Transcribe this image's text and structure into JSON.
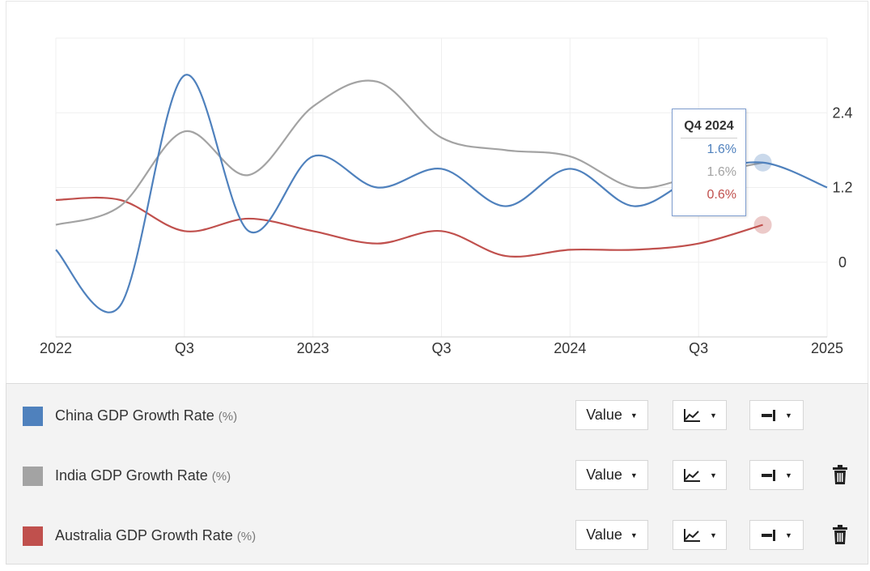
{
  "chart_data": {
    "type": "line",
    "x_ticks": [
      "2022",
      "Q3",
      "2023",
      "Q3",
      "2024",
      "Q3",
      "2025"
    ],
    "y_ticks": [
      "2.4",
      "1.2",
      "0"
    ],
    "ylim": [
      -1.2,
      3.6
    ],
    "y_axis_side": "right",
    "grid": true,
    "series": [
      {
        "name": "China GDP Growth Rate",
        "unit": "(%)",
        "color": "#4f81bd",
        "points": [
          [
            0,
            0.2
          ],
          [
            0.5,
            -0.7
          ],
          [
            1,
            3.0
          ],
          [
            1.5,
            0.5
          ],
          [
            2,
            1.7
          ],
          [
            2.5,
            1.2
          ],
          [
            3,
            1.5
          ],
          [
            3.5,
            0.9
          ],
          [
            4,
            1.5
          ],
          [
            4.5,
            0.9
          ],
          [
            5,
            1.4
          ],
          [
            5.5,
            1.6
          ],
          [
            6,
            1.2
          ]
        ]
      },
      {
        "name": "India GDP Growth Rate",
        "unit": "(%)",
        "color": "#a3a3a3",
        "points": [
          [
            0,
            0.6
          ],
          [
            0.5,
            0.9
          ],
          [
            1,
            2.1
          ],
          [
            1.5,
            1.4
          ],
          [
            2,
            2.5
          ],
          [
            2.5,
            2.9
          ],
          [
            3,
            2.0
          ],
          [
            3.5,
            1.8
          ],
          [
            4,
            1.7
          ],
          [
            4.5,
            1.2
          ],
          [
            5,
            1.4
          ],
          [
            5.5,
            1.6
          ]
        ]
      },
      {
        "name": "Australia GDP Growth Rate",
        "unit": "(%)",
        "color": "#c0504d",
        "points": [
          [
            0,
            1.0
          ],
          [
            0.5,
            1.0
          ],
          [
            1,
            0.5
          ],
          [
            1.5,
            0.7
          ],
          [
            2,
            0.5
          ],
          [
            2.5,
            0.3
          ],
          [
            3,
            0.5
          ],
          [
            3.5,
            0.1
          ],
          [
            4,
            0.2
          ],
          [
            4.5,
            0.2
          ],
          [
            5,
            0.3
          ],
          [
            5.5,
            0.6
          ]
        ]
      }
    ]
  },
  "tooltip": {
    "title": "Q4 2024",
    "values": [
      "1.6%",
      "1.6%",
      "0.6%"
    ]
  },
  "legend": {
    "rows": [
      {
        "label": "China GDP Growth Rate",
        "unit": "(%)",
        "color": "#4f81bd",
        "value_button": "Value",
        "chart_type_icon": "line-chart-icon",
        "axis_icon": "axis-right-icon",
        "removable": false
      },
      {
        "label": "India GDP Growth Rate",
        "unit": "(%)",
        "color": "#a3a3a3",
        "value_button": "Value",
        "chart_type_icon": "line-chart-icon",
        "axis_icon": "axis-right-icon",
        "removable": true
      },
      {
        "label": "Australia GDP Growth Rate",
        "unit": "(%)",
        "color": "#c0504d",
        "value_button": "Value",
        "chart_type_icon": "line-chart-icon",
        "axis_icon": "axis-right-icon",
        "removable": true
      }
    ]
  }
}
